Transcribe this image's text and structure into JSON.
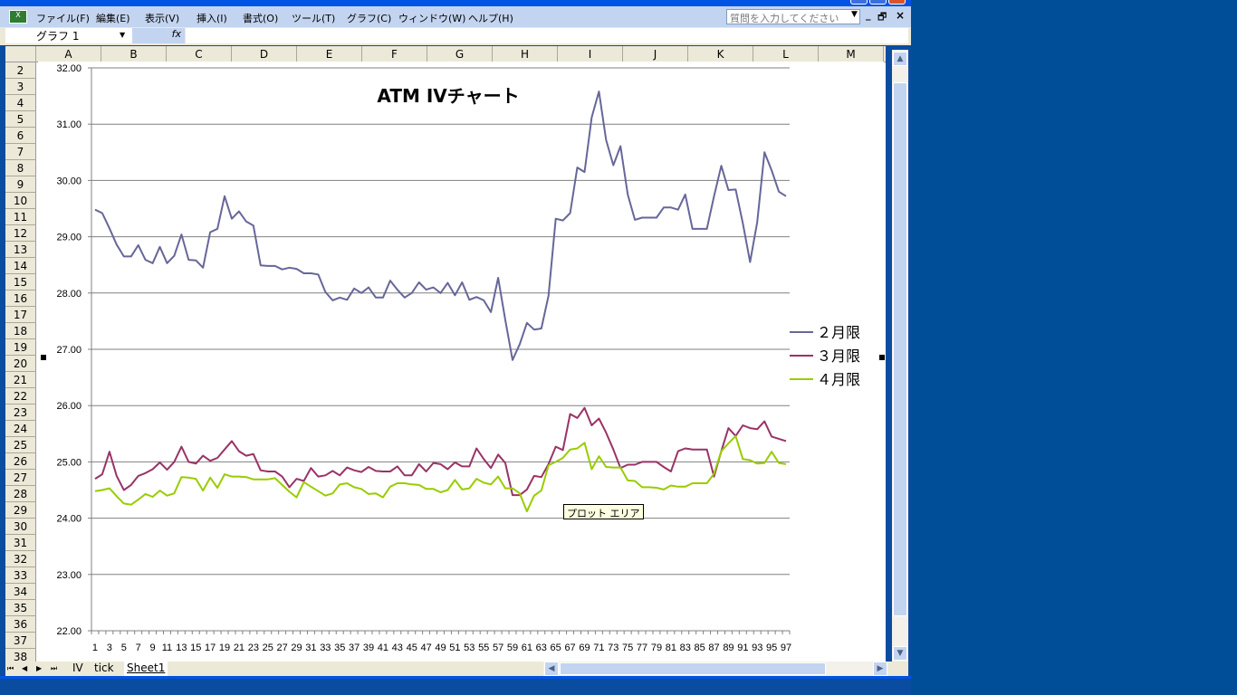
{
  "menubar": {
    "items": [
      "ファイル(F)",
      "編集(E)",
      "表示(V)",
      "挿入(I)",
      "書式(O)",
      "ツール(T)",
      "グラフ(C)",
      "ウィンドウ(W)",
      "ヘルプ(H)"
    ],
    "help_placeholder": "質問を入力してください",
    "window_controls": [
      "_",
      "🗗",
      "×"
    ]
  },
  "formula_bar": {
    "name_box": "グラフ 1",
    "fx_label": "fx",
    "formula": ""
  },
  "columns": [
    "A",
    "B",
    "C",
    "D",
    "E",
    "F",
    "G",
    "H",
    "I",
    "J",
    "K",
    "L",
    "M"
  ],
  "rows": [
    "2",
    "3",
    "4",
    "5",
    "6",
    "7",
    "8",
    "9",
    "10",
    "11",
    "12",
    "13",
    "14",
    "15",
    "16",
    "17",
    "18",
    "19",
    "20",
    "21",
    "22",
    "23",
    "24",
    "25",
    "26",
    "27",
    "28",
    "29",
    "30",
    "31",
    "32",
    "33",
    "34",
    "35",
    "36",
    "37",
    "38"
  ],
  "sheet_tabs": {
    "items": [
      "IV",
      "tick",
      "Sheet1"
    ],
    "active": "Sheet1",
    "nav": [
      "⏮",
      "◀",
      "▶",
      "⏭"
    ]
  },
  "tooltip": "プロット エリア",
  "colors": {
    "series1": "#666699",
    "series2": "#993366",
    "series3": "#99cc00",
    "menubar": "#c3d4f0",
    "desktop": "#004e98"
  },
  "chart_data": {
    "type": "line",
    "title": "ATM  IVチャート",
    "xlabel": "",
    "ylabel": "",
    "ylim": [
      22,
      32
    ],
    "yticks": [
      "22.00",
      "23.00",
      "24.00",
      "25.00",
      "26.00",
      "27.00",
      "28.00",
      "29.00",
      "30.00",
      "31.00",
      "32.00"
    ],
    "x": [
      1,
      2,
      3,
      4,
      5,
      6,
      7,
      8,
      9,
      10,
      11,
      12,
      13,
      14,
      15,
      16,
      17,
      18,
      19,
      20,
      21,
      22,
      23,
      24,
      25,
      26,
      27,
      28,
      29,
      30,
      31,
      32,
      33,
      34,
      35,
      36,
      37,
      38,
      39,
      40,
      41,
      42,
      43,
      44,
      45,
      46,
      47,
      48,
      49,
      50,
      51,
      52,
      53,
      54,
      55,
      56,
      57,
      58,
      59,
      60,
      61,
      62,
      63,
      64,
      65,
      66,
      67,
      68,
      69,
      70,
      71,
      72,
      73,
      74,
      75,
      76,
      77,
      78,
      79,
      80,
      81,
      82,
      83,
      84,
      85,
      86,
      87,
      88,
      89,
      90,
      91,
      92,
      93,
      94,
      95,
      96,
      97
    ],
    "xtick_labels": [
      "1",
      "3",
      "5",
      "7",
      "9",
      "11",
      "13",
      "15",
      "17",
      "19",
      "21",
      "23",
      "25",
      "27",
      "29",
      "31",
      "33",
      "35",
      "37",
      "39",
      "41",
      "43",
      "45",
      "47",
      "49",
      "51",
      "53",
      "55",
      "57",
      "59",
      "61",
      "63",
      "65",
      "67",
      "69",
      "71",
      "73",
      "75",
      "77",
      "79",
      "81",
      "83",
      "85",
      "87",
      "89",
      "91",
      "93",
      "95",
      "97"
    ],
    "grid": true,
    "legend_position": "right",
    "series": [
      {
        "name": "２月限",
        "color": "#666699",
        "values": [
          29.48,
          29.42,
          29.15,
          28.86,
          28.65,
          28.65,
          28.85,
          28.59,
          28.53,
          28.82,
          28.53,
          28.66,
          29.04,
          28.59,
          28.58,
          28.45,
          29.08,
          29.14,
          29.72,
          29.32,
          29.45,
          29.27,
          29.2,
          28.49,
          28.48,
          28.48,
          28.42,
          28.45,
          28.43,
          28.35,
          28.35,
          28.33,
          28.02,
          27.87,
          27.92,
          27.88,
          28.08,
          28.0,
          28.1,
          27.92,
          27.92,
          28.22,
          28.06,
          27.92,
          28.0,
          28.19,
          28.06,
          28.1,
          28.0,
          28.18,
          27.96,
          28.19,
          27.88,
          27.93,
          27.87,
          27.66,
          28.27,
          27.52,
          26.81,
          27.09,
          27.47,
          27.35,
          27.37,
          27.95,
          29.32,
          29.29,
          29.42,
          30.23,
          30.15,
          31.12,
          31.58,
          30.72,
          30.27,
          30.61,
          29.75,
          29.3,
          29.34,
          29.34,
          29.34,
          29.52,
          29.52,
          29.48,
          29.75,
          29.14,
          29.14,
          29.14,
          29.72,
          30.26,
          29.83,
          29.84,
          29.24,
          28.55,
          29.26,
          30.5,
          30.18,
          29.8,
          29.72
        ]
      },
      {
        "name": "３月限",
        "color": "#993366",
        "values": [
          24.7,
          24.78,
          25.18,
          24.75,
          24.5,
          24.59,
          24.75,
          24.8,
          24.87,
          24.99,
          24.86,
          25.0,
          25.27,
          25.0,
          24.97,
          25.11,
          25.02,
          25.07,
          25.22,
          25.37,
          25.19,
          25.11,
          25.14,
          24.85,
          24.83,
          24.83,
          24.74,
          24.55,
          24.7,
          24.66,
          24.89,
          24.74,
          24.76,
          24.84,
          24.76,
          24.9,
          24.85,
          24.82,
          24.91,
          24.84,
          24.83,
          24.83,
          24.92,
          24.76,
          24.76,
          24.96,
          24.83,
          24.98,
          24.96,
          24.87,
          24.99,
          24.92,
          24.92,
          25.24,
          25.05,
          24.89,
          25.13,
          24.98,
          24.41,
          24.41,
          24.51,
          24.75,
          24.73,
          24.96,
          25.27,
          25.21,
          25.85,
          25.78,
          25.96,
          25.65,
          25.77,
          25.52,
          25.22,
          24.89,
          24.95,
          24.95,
          25.0,
          25.0,
          25.0,
          24.91,
          24.83,
          25.19,
          25.24,
          25.22,
          25.22,
          25.22,
          24.74,
          25.19,
          25.6,
          25.46,
          25.65,
          25.6,
          25.58,
          25.72,
          25.45,
          25.41,
          25.37
        ]
      },
      {
        "name": "４月限",
        "color": "#99cc00",
        "values": [
          24.48,
          24.5,
          24.53,
          24.39,
          24.26,
          24.24,
          24.33,
          24.43,
          24.38,
          24.49,
          24.4,
          24.44,
          24.73,
          24.72,
          24.7,
          24.49,
          24.72,
          24.54,
          24.78,
          24.74,
          24.74,
          24.73,
          24.69,
          24.69,
          24.69,
          24.71,
          24.59,
          24.47,
          24.37,
          24.64,
          24.56,
          24.48,
          24.4,
          24.44,
          24.6,
          24.62,
          24.55,
          24.52,
          24.43,
          24.44,
          24.37,
          24.56,
          24.62,
          24.62,
          24.6,
          24.59,
          24.52,
          24.52,
          24.46,
          24.5,
          24.68,
          24.51,
          24.53,
          24.7,
          24.63,
          24.6,
          24.74,
          24.53,
          24.53,
          24.44,
          24.12,
          24.4,
          24.49,
          24.94,
          25.0,
          25.07,
          25.22,
          25.24,
          25.34,
          24.87,
          25.1,
          24.91,
          24.9,
          24.9,
          24.67,
          24.66,
          24.55,
          24.55,
          24.54,
          24.51,
          24.58,
          24.56,
          24.56,
          24.62,
          24.62,
          24.62,
          24.79,
          25.19,
          25.33,
          25.46,
          25.05,
          25.03,
          24.97,
          24.98,
          25.18,
          24.98,
          24.96
        ]
      }
    ]
  }
}
